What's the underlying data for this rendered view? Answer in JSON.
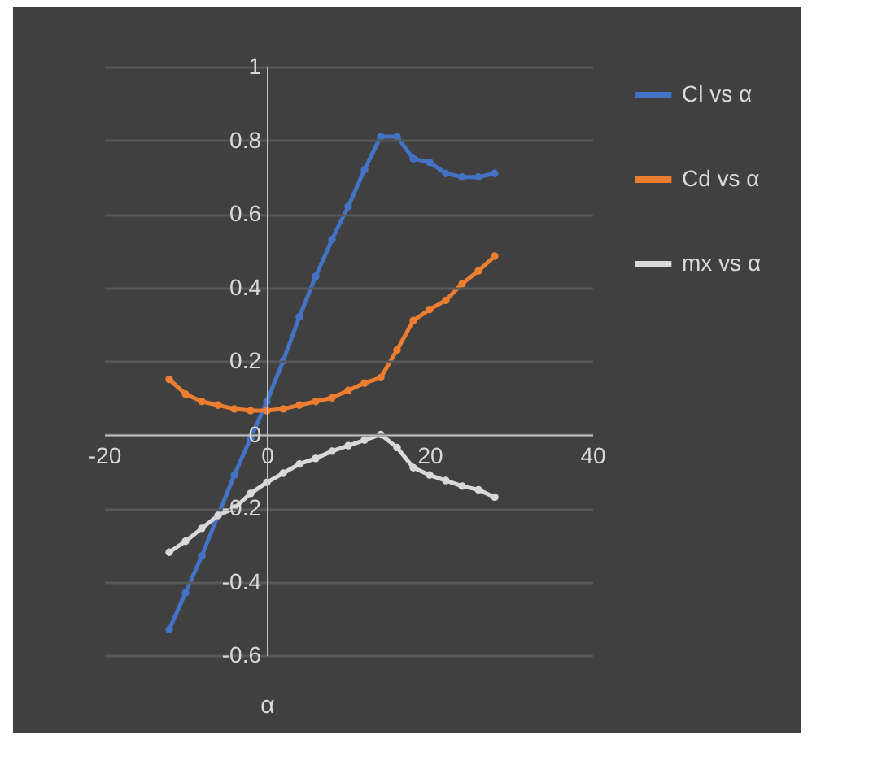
{
  "chart_data": {
    "type": "line",
    "xlabel": "α",
    "x": [
      -12,
      -10,
      -8,
      -6,
      -4,
      -2,
      0,
      2,
      4,
      6,
      8,
      10,
      12,
      14,
      16,
      18,
      20,
      22,
      24,
      26,
      28
    ],
    "series": [
      {
        "name": "Cl vs α",
        "color": "#4472c4",
        "values": [
          -0.53,
          -0.43,
          -0.33,
          -0.22,
          -0.11,
          -0.01,
          0.09,
          0.2,
          0.32,
          0.43,
          0.53,
          0.62,
          0.72,
          0.81,
          0.81,
          0.75,
          0.74,
          0.71,
          0.7,
          0.7,
          0.71
        ]
      },
      {
        "name": "Cd vs α",
        "color": "#ed7d31",
        "values": [
          0.15,
          0.11,
          0.09,
          0.08,
          0.07,
          0.065,
          0.065,
          0.07,
          0.08,
          0.09,
          0.1,
          0.12,
          0.14,
          0.155,
          0.23,
          0.31,
          0.34,
          0.365,
          0.41,
          0.445,
          0.485
        ]
      },
      {
        "name": "mx vs α",
        "color": "#d9d9d9",
        "values": [
          -0.32,
          -0.29,
          -0.255,
          -0.22,
          -0.2,
          -0.16,
          -0.13,
          -0.105,
          -0.08,
          -0.065,
          -0.045,
          -0.03,
          -0.015,
          0,
          -0.035,
          -0.09,
          -0.11,
          -0.125,
          -0.14,
          -0.15,
          -0.17
        ]
      }
    ],
    "xlim": [
      -20,
      40
    ],
    "xticks": [
      -20,
      0,
      20,
      40
    ],
    "ylim": [
      -0.6,
      1
    ],
    "yticks": [
      -0.6,
      -0.4,
      -0.2,
      0,
      0.2,
      0.4,
      0.6,
      0.8,
      1
    ],
    "grid": "y",
    "legend": "right",
    "marker": "circle",
    "line_style": "solid"
  }
}
